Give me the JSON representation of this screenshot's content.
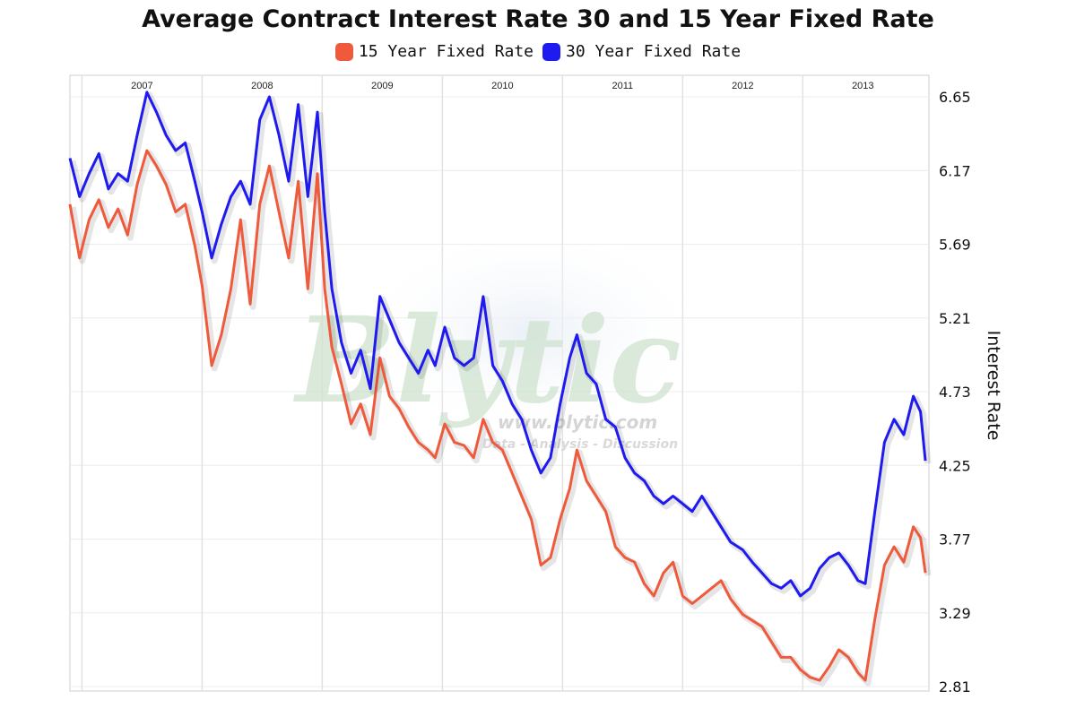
{
  "chart_data": {
    "type": "line",
    "title": "Average Contract Interest Rate 30 and 15 Year Fixed Rate",
    "ylabel": "Interest Rate",
    "xlabel": "",
    "yticks": [
      "2.81",
      "3.29",
      "3.77",
      "4.25",
      "4.73",
      "5.21",
      "5.69",
      "6.17",
      "6.65"
    ],
    "ylim": [
      2.81,
      6.65
    ],
    "xlim": [
      2006.4,
      2013.55
    ],
    "x_tick_labels": [
      {
        "label": "2007",
        "x": 2007.0
      },
      {
        "label": "2008",
        "x": 2008.0
      },
      {
        "label": "2009",
        "x": 2009.0
      },
      {
        "label": "2010",
        "x": 2010.0
      },
      {
        "label": "2011",
        "x": 2011.0
      },
      {
        "label": "2012",
        "x": 2012.0
      },
      {
        "label": "2013",
        "x": 2013.0
      }
    ],
    "year_gridlines": [
      2006.5,
      2007.5,
      2008.5,
      2009.5,
      2010.5,
      2011.5,
      2012.5
    ],
    "grid": true,
    "legend_position": "top-center",
    "series": [
      {
        "name": "15 Year Fixed Rate",
        "color": "#ef5a3c",
        "points": [
          [
            2006.4,
            5.95
          ],
          [
            2006.48,
            5.6
          ],
          [
            2006.56,
            5.85
          ],
          [
            2006.64,
            5.98
          ],
          [
            2006.72,
            5.8
          ],
          [
            2006.8,
            5.92
          ],
          [
            2006.88,
            5.75
          ],
          [
            2006.96,
            6.08
          ],
          [
            2007.04,
            6.3
          ],
          [
            2007.12,
            6.2
          ],
          [
            2007.2,
            6.08
          ],
          [
            2007.28,
            5.9
          ],
          [
            2007.36,
            5.95
          ],
          [
            2007.44,
            5.68
          ],
          [
            2007.5,
            5.42
          ],
          [
            2007.58,
            4.9
          ],
          [
            2007.66,
            5.1
          ],
          [
            2007.74,
            5.4
          ],
          [
            2007.82,
            5.85
          ],
          [
            2007.9,
            5.3
          ],
          [
            2007.98,
            5.95
          ],
          [
            2008.06,
            6.2
          ],
          [
            2008.14,
            5.9
          ],
          [
            2008.22,
            5.6
          ],
          [
            2008.3,
            6.1
          ],
          [
            2008.38,
            5.4
          ],
          [
            2008.46,
            6.15
          ],
          [
            2008.52,
            5.4
          ],
          [
            2008.58,
            5.02
          ],
          [
            2008.66,
            4.78
          ],
          [
            2008.74,
            4.52
          ],
          [
            2008.82,
            4.65
          ],
          [
            2008.9,
            4.45
          ],
          [
            2008.98,
            4.95
          ],
          [
            2009.06,
            4.7
          ],
          [
            2009.14,
            4.62
          ],
          [
            2009.22,
            4.5
          ],
          [
            2009.3,
            4.4
          ],
          [
            2009.38,
            4.35
          ],
          [
            2009.44,
            4.3
          ],
          [
            2009.52,
            4.52
          ],
          [
            2009.6,
            4.4
          ],
          [
            2009.68,
            4.38
          ],
          [
            2009.76,
            4.3
          ],
          [
            2009.84,
            4.55
          ],
          [
            2009.92,
            4.4
          ],
          [
            2010.0,
            4.35
          ],
          [
            2010.08,
            4.2
          ],
          [
            2010.16,
            4.05
          ],
          [
            2010.24,
            3.9
          ],
          [
            2010.32,
            3.6
          ],
          [
            2010.4,
            3.65
          ],
          [
            2010.48,
            3.9
          ],
          [
            2010.56,
            4.1
          ],
          [
            2010.62,
            4.35
          ],
          [
            2010.7,
            4.15
          ],
          [
            2010.78,
            4.05
          ],
          [
            2010.86,
            3.95
          ],
          [
            2010.94,
            3.72
          ],
          [
            2011.02,
            3.65
          ],
          [
            2011.1,
            3.62
          ],
          [
            2011.18,
            3.48
          ],
          [
            2011.26,
            3.4
          ],
          [
            2011.34,
            3.55
          ],
          [
            2011.42,
            3.62
          ],
          [
            2011.5,
            3.4
          ],
          [
            2011.58,
            3.35
          ],
          [
            2011.66,
            3.4
          ],
          [
            2011.74,
            3.45
          ],
          [
            2011.82,
            3.5
          ],
          [
            2011.9,
            3.38
          ],
          [
            2012.0,
            3.28
          ],
          [
            2012.08,
            3.24
          ],
          [
            2012.16,
            3.2
          ],
          [
            2012.24,
            3.1
          ],
          [
            2012.32,
            3.0
          ],
          [
            2012.4,
            3.0
          ],
          [
            2012.48,
            2.92
          ],
          [
            2012.56,
            2.87
          ],
          [
            2012.64,
            2.85
          ],
          [
            2012.72,
            2.94
          ],
          [
            2012.8,
            3.05
          ],
          [
            2012.88,
            3.0
          ],
          [
            2012.96,
            2.9
          ],
          [
            2013.02,
            2.85
          ],
          [
            2013.1,
            3.25
          ],
          [
            2013.18,
            3.6
          ],
          [
            2013.26,
            3.72
          ],
          [
            2013.34,
            3.62
          ],
          [
            2013.42,
            3.85
          ],
          [
            2013.48,
            3.78
          ],
          [
            2013.52,
            3.55
          ]
        ]
      },
      {
        "name": "30 Year Fixed Rate",
        "color": "#1f1aef",
        "points": [
          [
            2006.4,
            6.25
          ],
          [
            2006.48,
            6.0
          ],
          [
            2006.56,
            6.15
          ],
          [
            2006.64,
            6.28
          ],
          [
            2006.72,
            6.05
          ],
          [
            2006.8,
            6.15
          ],
          [
            2006.88,
            6.1
          ],
          [
            2006.96,
            6.4
          ],
          [
            2007.04,
            6.68
          ],
          [
            2007.12,
            6.55
          ],
          [
            2007.2,
            6.4
          ],
          [
            2007.28,
            6.3
          ],
          [
            2007.36,
            6.35
          ],
          [
            2007.44,
            6.1
          ],
          [
            2007.5,
            5.9
          ],
          [
            2007.58,
            5.6
          ],
          [
            2007.66,
            5.82
          ],
          [
            2007.74,
            6.0
          ],
          [
            2007.82,
            6.1
          ],
          [
            2007.9,
            5.95
          ],
          [
            2007.98,
            6.5
          ],
          [
            2008.06,
            6.65
          ],
          [
            2008.14,
            6.4
          ],
          [
            2008.22,
            6.1
          ],
          [
            2008.3,
            6.6
          ],
          [
            2008.38,
            6.0
          ],
          [
            2008.46,
            6.55
          ],
          [
            2008.52,
            5.9
          ],
          [
            2008.58,
            5.4
          ],
          [
            2008.66,
            5.05
          ],
          [
            2008.74,
            4.85
          ],
          [
            2008.82,
            5.0
          ],
          [
            2008.9,
            4.75
          ],
          [
            2008.98,
            5.35
          ],
          [
            2009.06,
            5.2
          ],
          [
            2009.14,
            5.05
          ],
          [
            2009.22,
            4.95
          ],
          [
            2009.3,
            4.85
          ],
          [
            2009.38,
            5.0
          ],
          [
            2009.44,
            4.9
          ],
          [
            2009.52,
            5.15
          ],
          [
            2009.6,
            4.95
          ],
          [
            2009.68,
            4.9
          ],
          [
            2009.76,
            4.95
          ],
          [
            2009.84,
            5.35
          ],
          [
            2009.92,
            4.9
          ],
          [
            2010.0,
            4.8
          ],
          [
            2010.08,
            4.65
          ],
          [
            2010.16,
            4.55
          ],
          [
            2010.24,
            4.35
          ],
          [
            2010.32,
            4.2
          ],
          [
            2010.4,
            4.3
          ],
          [
            2010.48,
            4.65
          ],
          [
            2010.56,
            4.95
          ],
          [
            2010.62,
            5.1
          ],
          [
            2010.7,
            4.85
          ],
          [
            2010.78,
            4.78
          ],
          [
            2010.86,
            4.55
          ],
          [
            2010.94,
            4.5
          ],
          [
            2011.02,
            4.3
          ],
          [
            2011.1,
            4.2
          ],
          [
            2011.18,
            4.15
          ],
          [
            2011.26,
            4.05
          ],
          [
            2011.34,
            4.0
          ],
          [
            2011.42,
            4.05
          ],
          [
            2011.5,
            4.0
          ],
          [
            2011.58,
            3.95
          ],
          [
            2011.66,
            4.05
          ],
          [
            2011.74,
            3.95
          ],
          [
            2011.82,
            3.85
          ],
          [
            2011.9,
            3.75
          ],
          [
            2012.0,
            3.7
          ],
          [
            2012.08,
            3.62
          ],
          [
            2012.16,
            3.55
          ],
          [
            2012.24,
            3.48
          ],
          [
            2012.32,
            3.45
          ],
          [
            2012.4,
            3.5
          ],
          [
            2012.48,
            3.4
          ],
          [
            2012.56,
            3.45
          ],
          [
            2012.64,
            3.58
          ],
          [
            2012.72,
            3.65
          ],
          [
            2012.8,
            3.68
          ],
          [
            2012.88,
            3.6
          ],
          [
            2012.96,
            3.5
          ],
          [
            2013.02,
            3.48
          ],
          [
            2013.1,
            3.95
          ],
          [
            2013.18,
            4.4
          ],
          [
            2013.26,
            4.55
          ],
          [
            2013.34,
            4.45
          ],
          [
            2013.42,
            4.7
          ],
          [
            2013.48,
            4.6
          ],
          [
            2013.52,
            4.28
          ]
        ]
      }
    ]
  },
  "watermark": {
    "main": "Blytic",
    "url": "www.blytic.com",
    "tagline": "Data - Analysis - Discussion"
  }
}
